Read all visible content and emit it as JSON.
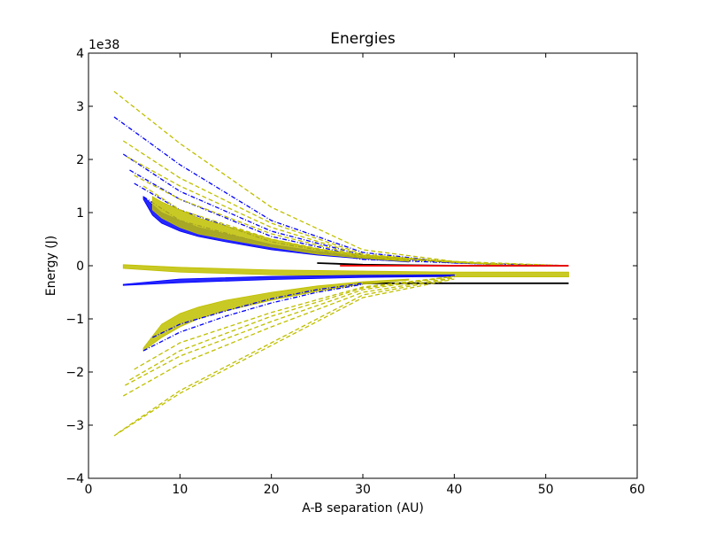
{
  "chart_data": {
    "type": "line",
    "title": "Energies",
    "xlabel": "A-B separation (AU)",
    "ylabel": "Energy (J)",
    "offset_label": "1e38",
    "xlim": [
      0,
      60
    ],
    "ylim": [
      -4,
      4
    ],
    "x_ticks": [
      0,
      10,
      20,
      30,
      40,
      50,
      60
    ],
    "x_tick_labels": [
      "0",
      "10",
      "20",
      "30",
      "40",
      "50",
      "60"
    ],
    "y_ticks": [
      -4,
      -3,
      -2,
      -1,
      0,
      1,
      2,
      3,
      4
    ],
    "y_tick_labels": [
      "−4",
      "−3",
      "−2",
      "−1",
      "0",
      "1",
      "2",
      "3",
      "4"
    ],
    "grid": false,
    "legend": "none",
    "colors": {
      "kinetic_blue": "#0000ff",
      "kinetic_yellow": "#bfbf00",
      "potential_blue": "#0000ff",
      "potential_yellow": "#bfbf00",
      "upper_black": "#000000",
      "lower_black": "#000000",
      "red": "#ff0000"
    },
    "series": [
      {
        "style": "dashdot",
        "color_key": "kinetic_blue",
        "curves": [
          {
            "x": [
              2.8,
              10,
              20,
              30,
              40,
              52.5
            ],
            "y": [
              2.8,
              1.9,
              0.85,
              0.25,
              0.06,
              0.0
            ]
          },
          {
            "x": [
              3.8,
              10,
              20,
              30,
              40,
              52.5
            ],
            "y": [
              2.1,
              1.4,
              0.65,
              0.2,
              0.05,
              0.0
            ]
          },
          {
            "x": [
              4.5,
              10,
              20,
              30,
              45
            ],
            "y": [
              1.8,
              1.25,
              0.55,
              0.17,
              0.02
            ]
          },
          {
            "x": [
              5,
              10,
              20,
              30,
              45
            ],
            "y": [
              1.55,
              1.05,
              0.45,
              0.15,
              0.02
            ]
          },
          {
            "x": [
              6,
              10,
              20,
              30,
              45
            ],
            "y": [
              1.3,
              0.85,
              0.38,
              0.12,
              0.02
            ]
          }
        ],
        "band": {
          "x": [
            6,
            7,
            8,
            10,
            12,
            15,
            20,
            25,
            30,
            35
          ],
          "y_low": [
            1.25,
            0.95,
            0.8,
            0.65,
            0.55,
            0.45,
            0.3,
            0.2,
            0.13,
            0.07
          ],
          "y_high": [
            1.3,
            1.15,
            1.0,
            0.85,
            0.72,
            0.6,
            0.4,
            0.27,
            0.17,
            0.1
          ]
        }
      },
      {
        "style": "dashed",
        "color_key": "kinetic_yellow",
        "curves": [
          {
            "x": [
              2.8,
              10,
              20,
              30,
              40,
              52.5
            ],
            "y": [
              3.28,
              2.3,
              1.1,
              0.3,
              0.08,
              0.0
            ]
          },
          {
            "x": [
              3.8,
              10,
              20,
              30,
              40,
              52.5
            ],
            "y": [
              2.35,
              1.65,
              0.8,
              0.22,
              0.06,
              0.0
            ]
          },
          {
            "x": [
              4.2,
              10,
              20,
              30,
              45
            ],
            "y": [
              2.05,
              1.5,
              0.72,
              0.2,
              0.02
            ]
          },
          {
            "x": [
              5,
              10,
              20,
              30,
              45
            ],
            "y": [
              1.7,
              1.25,
              0.6,
              0.18,
              0.02
            ]
          },
          {
            "x": [
              6,
              10,
              20,
              30,
              45
            ],
            "y": [
              1.5,
              1.05,
              0.5,
              0.15,
              0.02
            ]
          }
        ],
        "band": {
          "x": [
            7,
            8,
            10,
            12,
            15,
            20,
            25,
            30,
            35
          ],
          "y_low": [
            1.05,
            0.9,
            0.72,
            0.6,
            0.5,
            0.35,
            0.22,
            0.14,
            0.08
          ],
          "y_high": [
            1.3,
            1.2,
            1.05,
            0.9,
            0.75,
            0.5,
            0.32,
            0.2,
            0.12
          ]
        }
      },
      {
        "style": "solid",
        "color_key": "potential_yellow",
        "curves": [],
        "band": {
          "x": [
            3.8,
            10,
            20,
            30,
            40,
            52.5
          ],
          "y_low": [
            -0.05,
            -0.12,
            -0.17,
            -0.2,
            -0.21,
            -0.21
          ],
          "y_high": [
            0.02,
            -0.03,
            -0.08,
            -0.1,
            -0.12,
            -0.12
          ]
        }
      },
      {
        "style": "solid",
        "color_key": "potential_blue",
        "curves": [],
        "band": {
          "x": [
            3.8,
            10,
            20,
            30,
            40
          ],
          "y_low": [
            -0.37,
            -0.32,
            -0.26,
            -0.22,
            -0.2
          ],
          "y_high": [
            -0.35,
            -0.25,
            -0.2,
            -0.18,
            -0.17
          ]
        }
      },
      {
        "style": "solid",
        "color_key": "upper_black",
        "curves": [
          {
            "x": [
              25,
              30,
              35,
              40,
              45,
              50,
              52.5
            ],
            "y": [
              0.05,
              0.02,
              0.01,
              0.0,
              0.0,
              0.0,
              0.0
            ]
          }
        ],
        "band": null
      },
      {
        "style": "solid",
        "color_key": "lower_black",
        "curves": [
          {
            "x": [
              30,
              40,
              52.5
            ],
            "y": [
              -0.33,
              -0.33,
              -0.33
            ]
          }
        ],
        "band": null
      },
      {
        "style": "solid",
        "color_key": "red",
        "curves": [
          {
            "x": [
              27.5,
              40,
              52.5
            ],
            "y": [
              0.0,
              0.0,
              0.0
            ]
          }
        ],
        "band": null
      },
      {
        "style": "dashed",
        "color_key": "kinetic_yellow",
        "curves": [
          {
            "x": [
              2.8,
              10,
              20,
              30,
              40
            ],
            "y": [
              -3.2,
              -2.4,
              -1.5,
              -0.6,
              -0.25
            ]
          },
          {
            "x": [
              3.2,
              10,
              20,
              30,
              40
            ],
            "y": [
              -3.15,
              -2.35,
              -1.45,
              -0.55,
              -0.23
            ]
          },
          {
            "x": [
              3.8,
              10,
              20,
              30,
              40
            ],
            "y": [
              -2.45,
              -1.85,
              -1.15,
              -0.5,
              -0.22
            ]
          },
          {
            "x": [
              4,
              10,
              20,
              30,
              40
            ],
            "y": [
              -2.25,
              -1.7,
              -1.05,
              -0.45,
              -0.2
            ]
          },
          {
            "x": [
              4.5,
              10,
              20,
              30,
              40
            ],
            "y": [
              -2.15,
              -1.6,
              -0.95,
              -0.42,
              -0.2
            ]
          },
          {
            "x": [
              5,
              10,
              20,
              30,
              40
            ],
            "y": [
              -1.95,
              -1.45,
              -0.88,
              -0.4,
              -0.2
            ]
          }
        ],
        "band": {
          "x": [
            6,
            8,
            10,
            12,
            15,
            20,
            25,
            30,
            35
          ],
          "y_low": [
            -1.6,
            -1.35,
            -1.15,
            -1.0,
            -0.85,
            -0.65,
            -0.48,
            -0.35,
            -0.27
          ],
          "y_high": [
            -1.55,
            -1.1,
            -0.9,
            -0.78,
            -0.65,
            -0.5,
            -0.38,
            -0.3,
            -0.25
          ]
        }
      },
      {
        "style": "dashdot",
        "color_key": "kinetic_blue",
        "curves": [
          {
            "x": [
              6,
              10,
              15,
              20,
              25,
              30
            ],
            "y": [
              -1.6,
              -1.25,
              -0.95,
              -0.7,
              -0.5,
              -0.35
            ]
          },
          {
            "x": [
              7,
              10,
              15,
              20,
              25,
              30
            ],
            "y": [
              -1.35,
              -1.1,
              -0.85,
              -0.62,
              -0.45,
              -0.33
            ]
          }
        ],
        "band": null
      }
    ]
  }
}
